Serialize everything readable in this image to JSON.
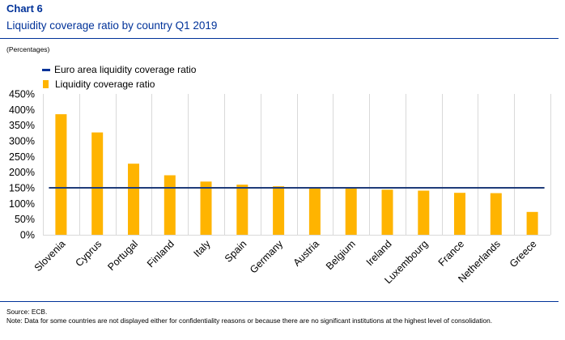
{
  "header": {
    "chart_label": "Chart 6",
    "title": "Liquidity coverage ratio by country Q1 2019",
    "units": "(Percentages)"
  },
  "footer": {
    "source": "Source: ECB.",
    "note": "Note: Data for some countries are not displayed either for confidentiality reasons or because there are no significant institutions at the highest level of consolidation."
  },
  "colors": {
    "bar": "#FFB400",
    "reference_line": "#1F3C7A",
    "grid": "#D9D9D9",
    "title": "#003299"
  },
  "chart_data": {
    "type": "bar",
    "title": "Liquidity coverage ratio by country Q1 2019",
    "ylabel": "(Percentages)",
    "ylim": [
      0,
      450
    ],
    "yticks": [
      0,
      50,
      100,
      150,
      200,
      250,
      300,
      350,
      400,
      450
    ],
    "ytick_labels": [
      "0%",
      "50%",
      "100%",
      "150%",
      "200%",
      "250%",
      "300%",
      "350%",
      "400%",
      "450%"
    ],
    "grid": "vertical",
    "legend_position": "top-left",
    "categories": [
      "Slovenia",
      "Cyprus",
      "Portugal",
      "Finland",
      "Italy",
      "Spain",
      "Germany",
      "Austria",
      "Belgium",
      "Ireland",
      "Luxembourg",
      "France",
      "Netherlands",
      "Greece"
    ],
    "series": [
      {
        "name": "Liquidity coverage ratio",
        "kind": "bar",
        "values": [
          385,
          327,
          227,
          190,
          170,
          160,
          155,
          152,
          150,
          144,
          141,
          134,
          133,
          73
        ]
      },
      {
        "name": "Euro area liquidity coverage ratio",
        "kind": "line",
        "value": 150
      }
    ]
  }
}
